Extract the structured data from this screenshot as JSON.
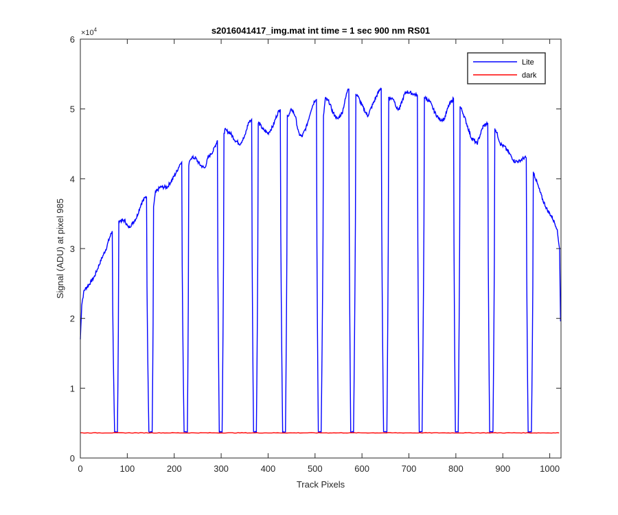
{
  "chart_data": {
    "type": "line",
    "title": "s2016041417_img.mat int time = 1 sec  900 nm RS01",
    "xlabel": "Track Pixels",
    "ylabel": "Signal (ADU) at pixel 985",
    "xlim": [
      0,
      1024
    ],
    "ylim": [
      0,
      60000
    ],
    "xticks": [
      0,
      100,
      200,
      300,
      400,
      500,
      600,
      700,
      800,
      900,
      1000
    ],
    "yticks": [
      0,
      1,
      2,
      3,
      4,
      5,
      6
    ],
    "ytick_labels": [
      "0",
      "1",
      "2",
      "3",
      "4",
      "5",
      "6"
    ],
    "y_exponent_label": "×10",
    "y_exponent": "4",
    "legend": {
      "position": "top-right",
      "entries": [
        "Lite",
        "dark"
      ]
    },
    "series": [
      {
        "name": "Lite",
        "color": "#0000ff",
        "baseline_points": [
          [
            0,
            17000
          ],
          [
            3,
            22000
          ],
          [
            8,
            24000
          ],
          [
            20,
            25000
          ],
          [
            30,
            26000
          ],
          [
            45,
            28500
          ],
          [
            55,
            30000
          ],
          [
            62,
            31500
          ],
          [
            68,
            32500
          ],
          [
            78,
            33500
          ],
          [
            82,
            34000
          ],
          [
            95,
            34000
          ],
          [
            102,
            33000
          ],
          [
            110,
            33500
          ],
          [
            120,
            34500
          ],
          [
            130,
            36500
          ],
          [
            140,
            37500
          ],
          [
            155,
            35500
          ],
          [
            160,
            38000
          ],
          [
            170,
            38800
          ],
          [
            185,
            38800
          ],
          [
            195,
            39800
          ],
          [
            205,
            41000
          ],
          [
            215,
            42500
          ],
          [
            228,
            41000
          ],
          [
            235,
            43000
          ],
          [
            245,
            43000
          ],
          [
            255,
            42000
          ],
          [
            265,
            41500
          ],
          [
            272,
            43000
          ],
          [
            283,
            44000
          ],
          [
            292,
            45500
          ],
          [
            302,
            45500
          ],
          [
            308,
            47000
          ],
          [
            320,
            46500
          ],
          [
            330,
            45500
          ],
          [
            340,
            45000
          ],
          [
            350,
            46000
          ],
          [
            358,
            48000
          ],
          [
            365,
            48500
          ],
          [
            375,
            47500
          ],
          [
            380,
            48000
          ],
          [
            390,
            47000
          ],
          [
            400,
            46500
          ],
          [
            410,
            47500
          ],
          [
            418,
            49000
          ],
          [
            425,
            50000
          ],
          [
            444,
            49000
          ],
          [
            450,
            50000
          ],
          [
            458,
            49000
          ],
          [
            465,
            46500
          ],
          [
            472,
            46000
          ],
          [
            482,
            47500
          ],
          [
            492,
            50000
          ],
          [
            498,
            51000
          ],
          [
            502,
            51500
          ],
          [
            518,
            49000
          ],
          [
            522,
            51500
          ],
          [
            530,
            51000
          ],
          [
            538,
            49500
          ],
          [
            548,
            48500
          ],
          [
            558,
            49500
          ],
          [
            565,
            51500
          ],
          [
            570,
            53000
          ],
          [
            590,
            52000
          ],
          [
            600,
            50500
          ],
          [
            612,
            49000
          ],
          [
            622,
            50500
          ],
          [
            632,
            52000
          ],
          [
            640,
            53000
          ],
          [
            660,
            51500
          ],
          [
            667,
            51500
          ],
          [
            675,
            50000
          ],
          [
            680,
            50000
          ],
          [
            690,
            52000
          ],
          [
            695,
            52500
          ],
          [
            737,
            51500
          ],
          [
            745,
            51000
          ],
          [
            755,
            49500
          ],
          [
            765,
            48500
          ],
          [
            775,
            48500
          ],
          [
            785,
            50500
          ],
          [
            795,
            51500
          ],
          [
            808,
            50500
          ],
          [
            815,
            49500
          ],
          [
            825,
            47500
          ],
          [
            832,
            46000
          ],
          [
            845,
            45000
          ],
          [
            858,
            47500
          ],
          [
            868,
            48000
          ],
          [
            880,
            47500
          ],
          [
            885,
            47000
          ],
          [
            895,
            45000
          ],
          [
            905,
            44500
          ],
          [
            915,
            43500
          ],
          [
            925,
            42500
          ],
          [
            935,
            42500
          ],
          [
            945,
            43000
          ],
          [
            950,
            43000
          ],
          [
            962,
            40000
          ],
          [
            965,
            41000
          ],
          [
            975,
            39000
          ],
          [
            985,
            37000
          ],
          [
            995,
            35500
          ],
          [
            1005,
            34500
          ],
          [
            1015,
            33000
          ],
          [
            1021,
            30000
          ],
          [
            1023,
            19500
          ]
        ],
        "dips": [
          {
            "start": 68,
            "bottom_start": 73,
            "bottom_end": 79,
            "end": 82
          },
          {
            "start": 141,
            "bottom_start": 146,
            "bottom_end": 153,
            "end": 156
          },
          {
            "start": 216,
            "bottom_start": 221,
            "bottom_end": 228,
            "end": 231
          },
          {
            "start": 292,
            "bottom_start": 296,
            "bottom_end": 302,
            "end": 306
          },
          {
            "start": 365,
            "bottom_start": 369,
            "bottom_end": 375,
            "end": 379
          },
          {
            "start": 426,
            "bottom_start": 431,
            "bottom_end": 437,
            "end": 441
          },
          {
            "start": 503,
            "bottom_start": 507,
            "bottom_end": 513,
            "end": 518
          },
          {
            "start": 572,
            "bottom_start": 576,
            "bottom_end": 582,
            "end": 587
          },
          {
            "start": 641,
            "bottom_start": 646,
            "bottom_end": 653,
            "end": 657
          },
          {
            "start": 718,
            "bottom_start": 722,
            "bottom_end": 728,
            "end": 733
          },
          {
            "start": 795,
            "bottom_start": 799,
            "bottom_end": 805,
            "end": 809
          },
          {
            "start": 868,
            "bottom_start": 872,
            "bottom_end": 879,
            "end": 883
          },
          {
            "start": 950,
            "bottom_start": 954,
            "bottom_end": 961,
            "end": 965
          }
        ],
        "dip_floor": 3700
      },
      {
        "name": "dark",
        "color": "#ff0000",
        "constant_value": 3600
      }
    ]
  }
}
